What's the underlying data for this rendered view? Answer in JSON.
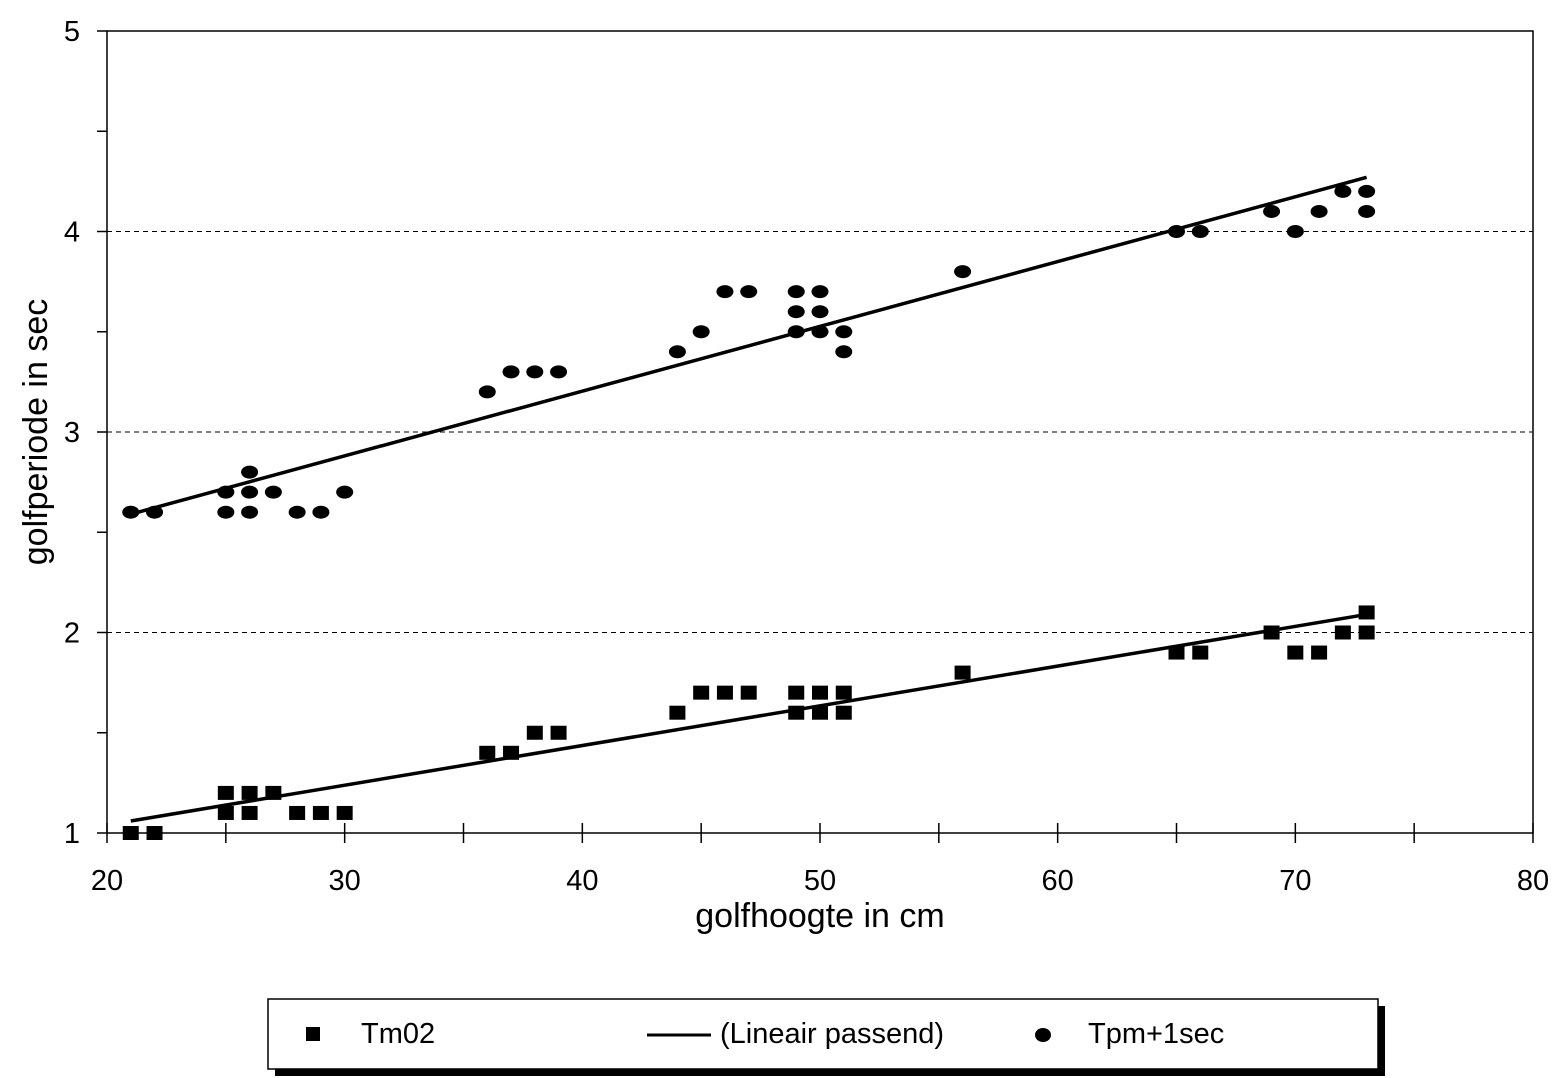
{
  "chart_data": {
    "type": "scatter",
    "title": "",
    "xlabel": "golfhoogte in cm",
    "ylabel": "golfperiode in sec",
    "xlim": [
      20,
      80
    ],
    "ylim": [
      1,
      5
    ],
    "x_ticks": [
      "20",
      "30",
      "40",
      "50",
      "60",
      "70",
      "80"
    ],
    "y_ticks": [
      "1",
      "2",
      "3",
      "4",
      "5"
    ],
    "grid": "horizontal dashed at y = 2, 3, 4",
    "legend_position": "bottom",
    "series": [
      {
        "name": "Tm02",
        "marker": "square",
        "points": [
          [
            21,
            1.0
          ],
          [
            22,
            1.0
          ],
          [
            25,
            1.2
          ],
          [
            25,
            1.1
          ],
          [
            26,
            1.2
          ],
          [
            26,
            1.1
          ],
          [
            27,
            1.2
          ],
          [
            28,
            1.1
          ],
          [
            29,
            1.1
          ],
          [
            30,
            1.1
          ],
          [
            36,
            1.4
          ],
          [
            37,
            1.4
          ],
          [
            38,
            1.5
          ],
          [
            39,
            1.5
          ],
          [
            44,
            1.6
          ],
          [
            45,
            1.7
          ],
          [
            46,
            1.7
          ],
          [
            47,
            1.7
          ],
          [
            49,
            1.7
          ],
          [
            49,
            1.6
          ],
          [
            50,
            1.7
          ],
          [
            50,
            1.6
          ],
          [
            51,
            1.7
          ],
          [
            51,
            1.6
          ],
          [
            56,
            1.8
          ],
          [
            65,
            1.9
          ],
          [
            66,
            1.9
          ],
          [
            69,
            2.0
          ],
          [
            70,
            1.9
          ],
          [
            71,
            1.9
          ],
          [
            72,
            2.0
          ],
          [
            73,
            2.1
          ],
          [
            73,
            2.0
          ]
        ]
      },
      {
        "name": "Tpm+1sec",
        "marker": "circle",
        "points": [
          [
            21,
            2.6
          ],
          [
            22,
            2.6
          ],
          [
            25,
            2.7
          ],
          [
            25,
            2.6
          ],
          [
            26,
            2.8
          ],
          [
            26,
            2.7
          ],
          [
            26,
            2.6
          ],
          [
            27,
            2.7
          ],
          [
            28,
            2.6
          ],
          [
            29,
            2.6
          ],
          [
            30,
            2.7
          ],
          [
            36,
            3.2
          ],
          [
            37,
            3.3
          ],
          [
            38,
            3.3
          ],
          [
            39,
            3.3
          ],
          [
            44,
            3.4
          ],
          [
            45,
            3.5
          ],
          [
            46,
            3.7
          ],
          [
            47,
            3.7
          ],
          [
            49,
            3.7
          ],
          [
            49,
            3.6
          ],
          [
            49,
            3.5
          ],
          [
            50,
            3.7
          ],
          [
            50,
            3.6
          ],
          [
            50,
            3.5
          ],
          [
            51,
            3.5
          ],
          [
            51,
            3.4
          ],
          [
            56,
            3.8
          ],
          [
            65,
            4.0
          ],
          [
            66,
            4.0
          ],
          [
            69,
            4.1
          ],
          [
            70,
            4.0
          ],
          [
            71,
            4.1
          ],
          [
            72,
            4.2
          ],
          [
            73,
            4.2
          ],
          [
            73,
            4.1
          ]
        ]
      }
    ],
    "trendlines": [
      {
        "series": "Tm02",
        "x": [
          21,
          73
        ],
        "y": [
          1.06,
          2.09
        ]
      },
      {
        "series": "Tpm+1sec",
        "x": [
          21,
          73
        ],
        "y": [
          2.59,
          4.27
        ]
      }
    ],
    "legend": {
      "items": [
        {
          "marker": "square",
          "label": "Tm02"
        },
        {
          "marker": "line",
          "label": "(Lineair passend)"
        },
        {
          "marker": "circle",
          "label": "Tpm+1sec"
        }
      ]
    }
  }
}
